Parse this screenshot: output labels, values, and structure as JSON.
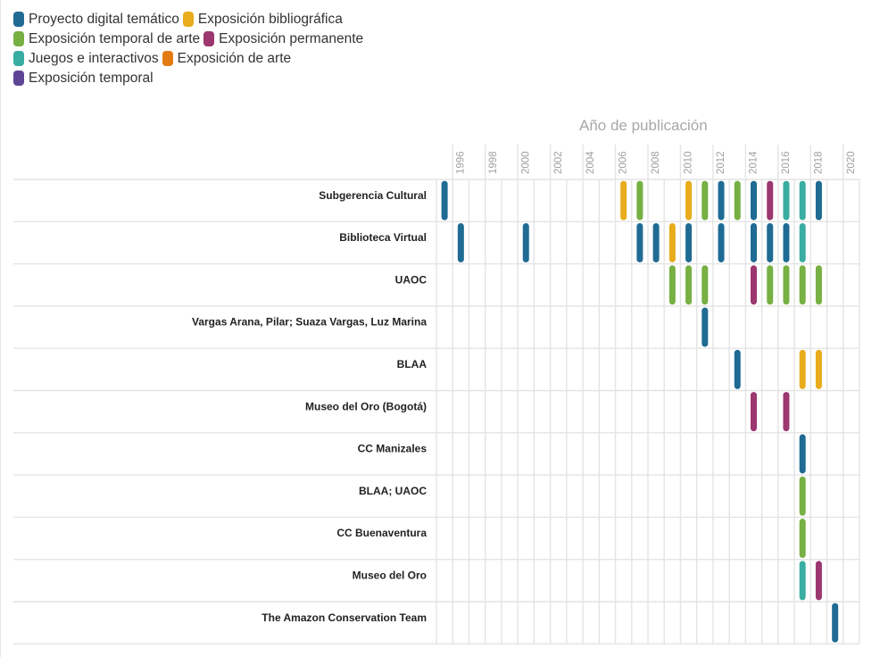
{
  "legend": [
    {
      "label": "Proyecto digital temático",
      "color": "#1f6b94"
    },
    {
      "label": "Exposición bibliográfica",
      "color": "#e8ac1c"
    },
    {
      "label": "Exposición temporal de arte",
      "color": "#77b043"
    },
    {
      "label": "Exposición permanente",
      "color": "#9c3770"
    },
    {
      "label": "Juegos e interactivos",
      "color": "#3aada2"
    },
    {
      "label": "Exposición de arte",
      "color": "#e37b12"
    },
    {
      "label": "Exposición temporal",
      "color": "#5e4596"
    }
  ],
  "chart_data": {
    "type": "timeline-strip",
    "xlabel": "Año de publicación",
    "xlim": [
      1995,
      2021
    ],
    "xticks": [
      1996,
      1998,
      2000,
      2002,
      2004,
      2006,
      2008,
      2010,
      2012,
      2014,
      2016,
      2018,
      2020
    ],
    "rows": [
      {
        "name": "Subgerencia Cultural",
        "items": [
          {
            "year": 1995,
            "type": "Proyecto digital temático"
          },
          {
            "year": 2006,
            "type": "Exposición bibliográfica"
          },
          {
            "year": 2007,
            "type": "Exposición temporal de arte"
          },
          {
            "year": 2010,
            "type": "Exposición bibliográfica"
          },
          {
            "year": 2011,
            "type": "Exposición temporal de arte"
          },
          {
            "year": 2012,
            "type": "Proyecto digital temático"
          },
          {
            "year": 2013,
            "type": "Exposición temporal de arte"
          },
          {
            "year": 2014,
            "type": "Proyecto digital temático"
          },
          {
            "year": 2015,
            "type": "Exposición permanente"
          },
          {
            "year": 2016,
            "type": "Juegos e interactivos"
          },
          {
            "year": 2017,
            "type": "Juegos e interactivos"
          },
          {
            "year": 2018,
            "type": "Proyecto digital temático"
          }
        ]
      },
      {
        "name": "Biblioteca Virtual",
        "items": [
          {
            "year": 1996,
            "type": "Proyecto digital temático"
          },
          {
            "year": 2000,
            "type": "Proyecto digital temático"
          },
          {
            "year": 2007,
            "type": "Proyecto digital temático"
          },
          {
            "year": 2008,
            "type": "Proyecto digital temático"
          },
          {
            "year": 2009,
            "type": "Exposición bibliográfica"
          },
          {
            "year": 2010,
            "type": "Proyecto digital temático"
          },
          {
            "year": 2012,
            "type": "Proyecto digital temático"
          },
          {
            "year": 2014,
            "type": "Proyecto digital temático"
          },
          {
            "year": 2015,
            "type": "Proyecto digital temático"
          },
          {
            "year": 2016,
            "type": "Proyecto digital temático"
          },
          {
            "year": 2017,
            "type": "Juegos e interactivos"
          }
        ]
      },
      {
        "name": "UAOC",
        "items": [
          {
            "year": 2009,
            "type": "Exposición temporal de arte"
          },
          {
            "year": 2010,
            "type": "Exposición temporal de arte"
          },
          {
            "year": 2011,
            "type": "Exposición temporal de arte"
          },
          {
            "year": 2014,
            "type": "Exposición permanente"
          },
          {
            "year": 2015,
            "type": "Exposición temporal de arte"
          },
          {
            "year": 2016,
            "type": "Exposición temporal de arte"
          },
          {
            "year": 2017,
            "type": "Exposición temporal de arte"
          },
          {
            "year": 2018,
            "type": "Exposición temporal de arte"
          }
        ]
      },
      {
        "name": "Vargas Arana, Pilar; Suaza Vargas, Luz Marina",
        "items": [
          {
            "year": 2011,
            "type": "Proyecto digital temático"
          }
        ]
      },
      {
        "name": "BLAA",
        "items": [
          {
            "year": 2013,
            "type": "Proyecto digital temático"
          },
          {
            "year": 2017,
            "type": "Exposición bibliográfica"
          },
          {
            "year": 2018,
            "type": "Exposición bibliográfica"
          }
        ]
      },
      {
        "name": "Museo del Oro (Bogotá)",
        "items": [
          {
            "year": 2014,
            "type": "Exposición permanente"
          },
          {
            "year": 2016,
            "type": "Exposición permanente"
          }
        ]
      },
      {
        "name": "CC Manizales",
        "items": [
          {
            "year": 2017,
            "type": "Proyecto digital temático"
          }
        ]
      },
      {
        "name": "BLAA; UAOC",
        "items": [
          {
            "year": 2017,
            "type": "Exposición temporal de arte"
          }
        ]
      },
      {
        "name": "CC Buenaventura",
        "items": [
          {
            "year": 2017,
            "type": "Exposición temporal de arte"
          }
        ]
      },
      {
        "name": "Museo del Oro",
        "items": [
          {
            "year": 2017,
            "type": "Juegos e interactivos"
          },
          {
            "year": 2018,
            "type": "Exposición permanente"
          }
        ]
      },
      {
        "name": "The Amazon Conservation Team",
        "items": [
          {
            "year": 2019,
            "type": "Proyecto digital temático"
          }
        ]
      }
    ]
  }
}
